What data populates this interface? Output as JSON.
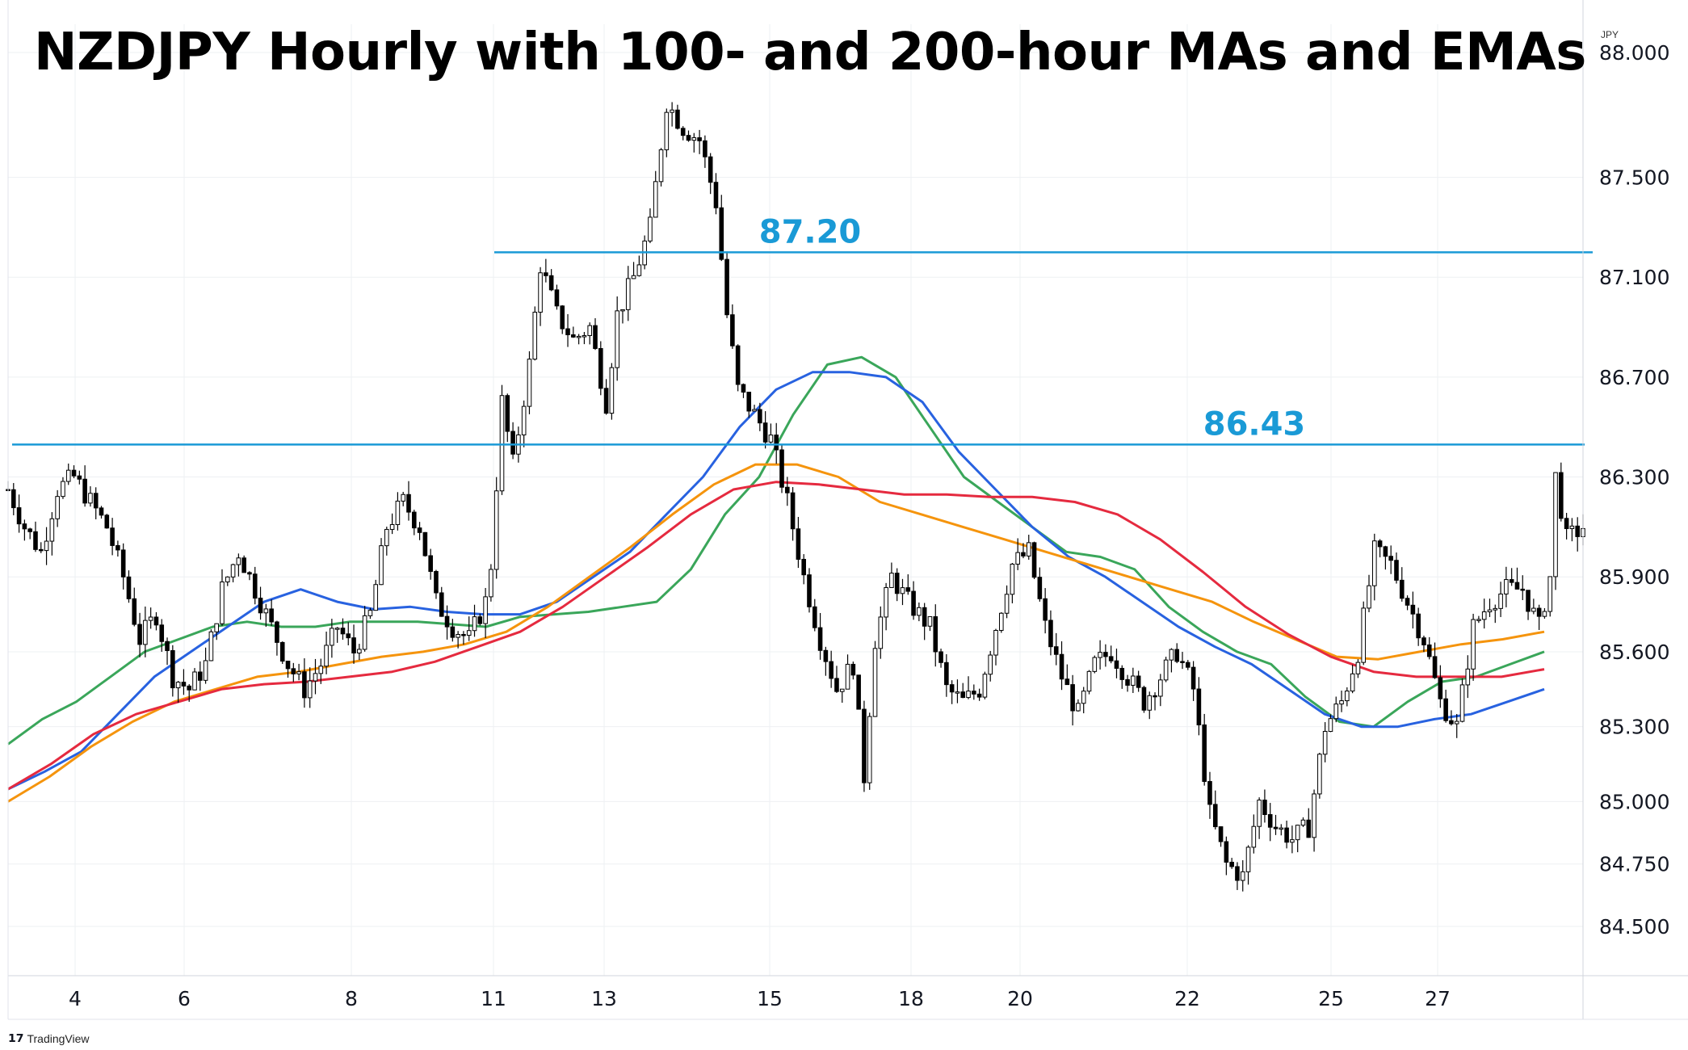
{
  "title": "NZDJPY Hourly with 100- and 200-hour MAs and EMAs",
  "currency_label": "JPY",
  "watermark": "TradingView",
  "colors": {
    "candle": "#000000",
    "level_line": "#1a9ad6",
    "level_label": "#1a9ad6",
    "ma100_green": "#3aa65a",
    "ma_blue": "#2862e0",
    "ma_orange": "#f5940d",
    "ma_red": "#e52a3f",
    "grid": "#eef0f3",
    "axis_text": "#131722"
  },
  "chart_data": {
    "type": "candlestick",
    "title": "NZDJPY Hourly with 100- and 200-hour MAs and EMAs",
    "grid": true,
    "ylim": [
      84.3,
      88.05
    ],
    "y_ticks": [
      "88.000",
      "87.500",
      "87.100",
      "86.700",
      "86.300",
      "85.900",
      "85.600",
      "85.300",
      "85.000",
      "84.750",
      "84.500"
    ],
    "x_ticks": [
      "4",
      "6",
      "8",
      "11",
      "13",
      "15",
      "18",
      "20",
      "22",
      "25",
      "27"
    ],
    "levels": [
      {
        "label": "87.20",
        "value": 87.2
      },
      {
        "label": "86.43",
        "value": 86.43
      }
    ],
    "price_path_keypoints": [
      [
        0,
        86.25
      ],
      [
        3,
        86.1
      ],
      [
        6,
        86.0
      ],
      [
        9,
        86.25
      ],
      [
        12,
        86.3
      ],
      [
        15,
        86.2
      ],
      [
        18,
        86.1
      ],
      [
        21,
        85.9
      ],
      [
        24,
        85.65
      ],
      [
        27,
        85.75
      ],
      [
        30,
        85.5
      ],
      [
        33,
        85.45
      ],
      [
        36,
        85.55
      ],
      [
        39,
        85.85
      ],
      [
        42,
        86.0
      ],
      [
        45,
        85.85
      ],
      [
        48,
        85.7
      ],
      [
        51,
        85.55
      ],
      [
        54,
        85.45
      ],
      [
        57,
        85.55
      ],
      [
        60,
        85.7
      ],
      [
        63,
        85.6
      ],
      [
        66,
        85.75
      ],
      [
        69,
        86.1
      ],
      [
        72,
        86.2
      ],
      [
        75,
        86.1
      ],
      [
        78,
        85.8
      ],
      [
        81,
        85.7
      ],
      [
        84,
        85.65
      ],
      [
        87,
        85.8
      ],
      [
        88,
        85.95
      ],
      [
        90,
        86.6
      ],
      [
        92,
        86.35
      ],
      [
        95,
        86.75
      ],
      [
        97,
        87.15
      ],
      [
        100,
        86.95
      ],
      [
        103,
        86.85
      ],
      [
        106,
        86.9
      ],
      [
        109,
        86.6
      ],
      [
        111,
        86.95
      ],
      [
        114,
        87.1
      ],
      [
        117,
        87.3
      ],
      [
        120,
        87.8
      ],
      [
        123,
        87.7
      ],
      [
        126,
        87.65
      ],
      [
        129,
        87.4
      ],
      [
        131,
        86.95
      ],
      [
        133,
        86.65
      ],
      [
        136,
        86.55
      ],
      [
        139,
        86.45
      ],
      [
        142,
        86.2
      ],
      [
        145,
        85.9
      ],
      [
        148,
        85.65
      ],
      [
        151,
        85.45
      ],
      [
        154,
        85.55
      ],
      [
        156,
        85.1
      ],
      [
        158,
        85.65
      ],
      [
        161,
        85.9
      ],
      [
        164,
        85.8
      ],
      [
        168,
        85.7
      ],
      [
        171,
        85.45
      ],
      [
        174,
        85.4
      ],
      [
        177,
        85.45
      ],
      [
        180,
        85.7
      ],
      [
        183,
        85.95
      ],
      [
        186,
        86.0
      ],
      [
        189,
        85.7
      ],
      [
        192,
        85.5
      ],
      [
        195,
        85.35
      ],
      [
        198,
        85.55
      ],
      [
        201,
        85.6
      ],
      [
        204,
        85.5
      ],
      [
        207,
        85.4
      ],
      [
        210,
        85.5
      ],
      [
        213,
        85.6
      ],
      [
        216,
        85.45
      ],
      [
        219,
        84.95
      ],
      [
        222,
        84.75
      ],
      [
        225,
        84.7
      ],
      [
        228,
        85.0
      ],
      [
        231,
        84.9
      ],
      [
        234,
        84.85
      ],
      [
        237,
        84.9
      ],
      [
        240,
        85.3
      ],
      [
        243,
        85.4
      ],
      [
        246,
        85.6
      ],
      [
        249,
        86.0
      ],
      [
        252,
        85.95
      ],
      [
        255,
        85.8
      ],
      [
        258,
        85.65
      ],
      [
        261,
        85.4
      ],
      [
        264,
        85.3
      ],
      [
        267,
        85.7
      ],
      [
        270,
        85.8
      ],
      [
        273,
        85.85
      ],
      [
        276,
        85.85
      ],
      [
        279,
        85.7
      ],
      [
        281,
        85.9
      ],
      [
        282,
        86.3
      ],
      [
        284,
        86.05
      ],
      [
        287,
        86.1
      ]
    ],
    "series": [
      {
        "color": "#3aa65a",
        "values": [
          85.23,
          85.33,
          85.4,
          85.5,
          85.6,
          85.65,
          85.7,
          85.72,
          85.7,
          85.7,
          85.72,
          85.72,
          85.72,
          85.71,
          85.7,
          85.74,
          85.75,
          85.76,
          85.78,
          85.8,
          85.93,
          86.15,
          86.3,
          86.55,
          86.75,
          86.78,
          86.7,
          86.5,
          86.3,
          86.2,
          86.1,
          86.0,
          85.98,
          85.93,
          85.78,
          85.68,
          85.6,
          85.55,
          85.42,
          85.32,
          85.3,
          85.4,
          85.48,
          85.5,
          85.55,
          85.6
        ]
      },
      {
        "color": "#2862e0",
        "values": [
          85.05,
          85.12,
          85.2,
          85.35,
          85.5,
          85.6,
          85.7,
          85.8,
          85.85,
          85.8,
          85.77,
          85.78,
          85.76,
          85.75,
          85.75,
          85.8,
          85.9,
          86.0,
          86.15,
          86.3,
          86.5,
          86.65,
          86.72,
          86.72,
          86.7,
          86.6,
          86.4,
          86.25,
          86.1,
          85.98,
          85.9,
          85.8,
          85.7,
          85.62,
          85.55,
          85.45,
          85.35,
          85.3,
          85.3,
          85.33,
          85.35,
          85.4,
          85.45
        ]
      },
      {
        "color": "#f5940d",
        "values": [
          85.0,
          85.1,
          85.22,
          85.32,
          85.4,
          85.45,
          85.5,
          85.52,
          85.55,
          85.58,
          85.6,
          85.63,
          85.68,
          85.78,
          85.9,
          86.02,
          86.15,
          86.27,
          86.35,
          86.35,
          86.3,
          86.2,
          86.15,
          86.1,
          86.05,
          86.0,
          85.95,
          85.9,
          85.85,
          85.8,
          85.72,
          85.65,
          85.58,
          85.57,
          85.6,
          85.63,
          85.65,
          85.68
        ]
      },
      {
        "color": "#e52a3f",
        "values": [
          85.05,
          85.15,
          85.27,
          85.35,
          85.4,
          85.45,
          85.47,
          85.48,
          85.5,
          85.52,
          85.56,
          85.62,
          85.68,
          85.78,
          85.9,
          86.02,
          86.15,
          86.25,
          86.28,
          86.27,
          86.25,
          86.23,
          86.23,
          86.22,
          86.22,
          86.2,
          86.15,
          86.05,
          85.92,
          85.78,
          85.67,
          85.58,
          85.52,
          85.5,
          85.5,
          85.5,
          85.53
        ]
      }
    ]
  }
}
